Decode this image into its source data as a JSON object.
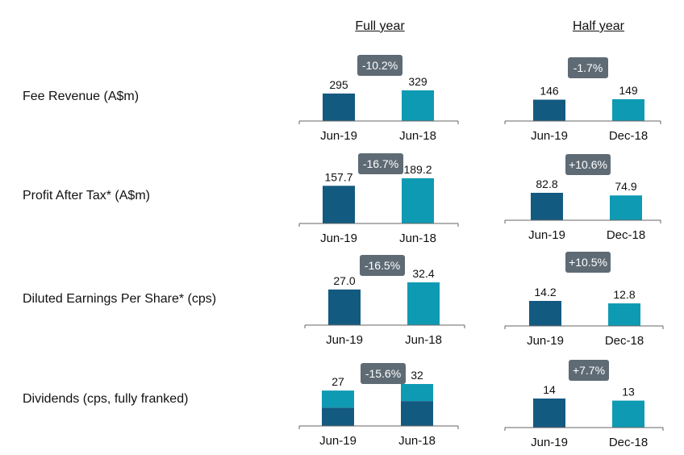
{
  "headers": {
    "full_year": "Full year",
    "half_year": "Half year"
  },
  "colors": {
    "dark": "#135a80",
    "teal": "#0f9ab3",
    "badge": "#5e6b75",
    "axis": "#666666"
  },
  "rows": [
    {
      "label": "Fee Revenue (A$m)"
    },
    {
      "label": "Profit After Tax* (A$m)"
    },
    {
      "label": "Diluted Earnings Per Share* (cps)"
    },
    {
      "label": "Dividends (cps, fully franked)"
    }
  ],
  "chart_data": [
    {
      "type": "bar",
      "metric": "Fee Revenue (A$m)",
      "period": "Full year",
      "categories": [
        "Jun-19",
        "Jun-18"
      ],
      "values": [
        295,
        329
      ],
      "value_labels": [
        "295",
        "329"
      ],
      "change": "-10.2%"
    },
    {
      "type": "bar",
      "metric": "Fee Revenue (A$m)",
      "period": "Half year",
      "categories": [
        "Jun-19",
        "Dec-18"
      ],
      "values": [
        146,
        149
      ],
      "value_labels": [
        "146",
        "149"
      ],
      "change": "-1.7%"
    },
    {
      "type": "bar",
      "metric": "Profit After Tax* (A$m)",
      "period": "Full year",
      "categories": [
        "Jun-19",
        "Jun-18"
      ],
      "values": [
        157.7,
        189.2
      ],
      "value_labels": [
        "157.7",
        "189.2"
      ],
      "change": "-16.7%"
    },
    {
      "type": "bar",
      "metric": "Profit After Tax* (A$m)",
      "period": "Half year",
      "categories": [
        "Jun-19",
        "Dec-18"
      ],
      "values": [
        82.8,
        74.9
      ],
      "value_labels": [
        "82.8",
        "74.9"
      ],
      "change": "+10.6%"
    },
    {
      "type": "bar",
      "metric": "Diluted Earnings Per Share* (cps)",
      "period": "Full year",
      "categories": [
        "Jun-19",
        "Jun-18"
      ],
      "values": [
        27.0,
        32.4
      ],
      "value_labels": [
        "27.0",
        "32.4"
      ],
      "change": "-16.5%"
    },
    {
      "type": "bar",
      "metric": "Diluted Earnings Per Share* (cps)",
      "period": "Half year",
      "categories": [
        "Jun-19",
        "Dec-18"
      ],
      "values": [
        14.2,
        12.8
      ],
      "value_labels": [
        "14.2",
        "12.8"
      ],
      "change": "+10.5%"
    },
    {
      "type": "stacked-bar",
      "metric": "Dividends (cps, fully franked)",
      "period": "Full year",
      "categories": [
        "Jun-19",
        "Jun-18"
      ],
      "values": [
        27,
        32
      ],
      "value_labels": [
        "27",
        "32"
      ],
      "change": "-15.6%",
      "segments": [
        {
          "values": [
            14,
            19
          ]
        },
        {
          "values": [
            13,
            13
          ]
        }
      ]
    },
    {
      "type": "bar",
      "metric": "Dividends (cps, fully franked)",
      "period": "Half year",
      "categories": [
        "Jun-19",
        "Dec-18"
      ],
      "values": [
        14,
        13
      ],
      "value_labels": [
        "14",
        "13"
      ],
      "change": "+7.7%"
    }
  ]
}
